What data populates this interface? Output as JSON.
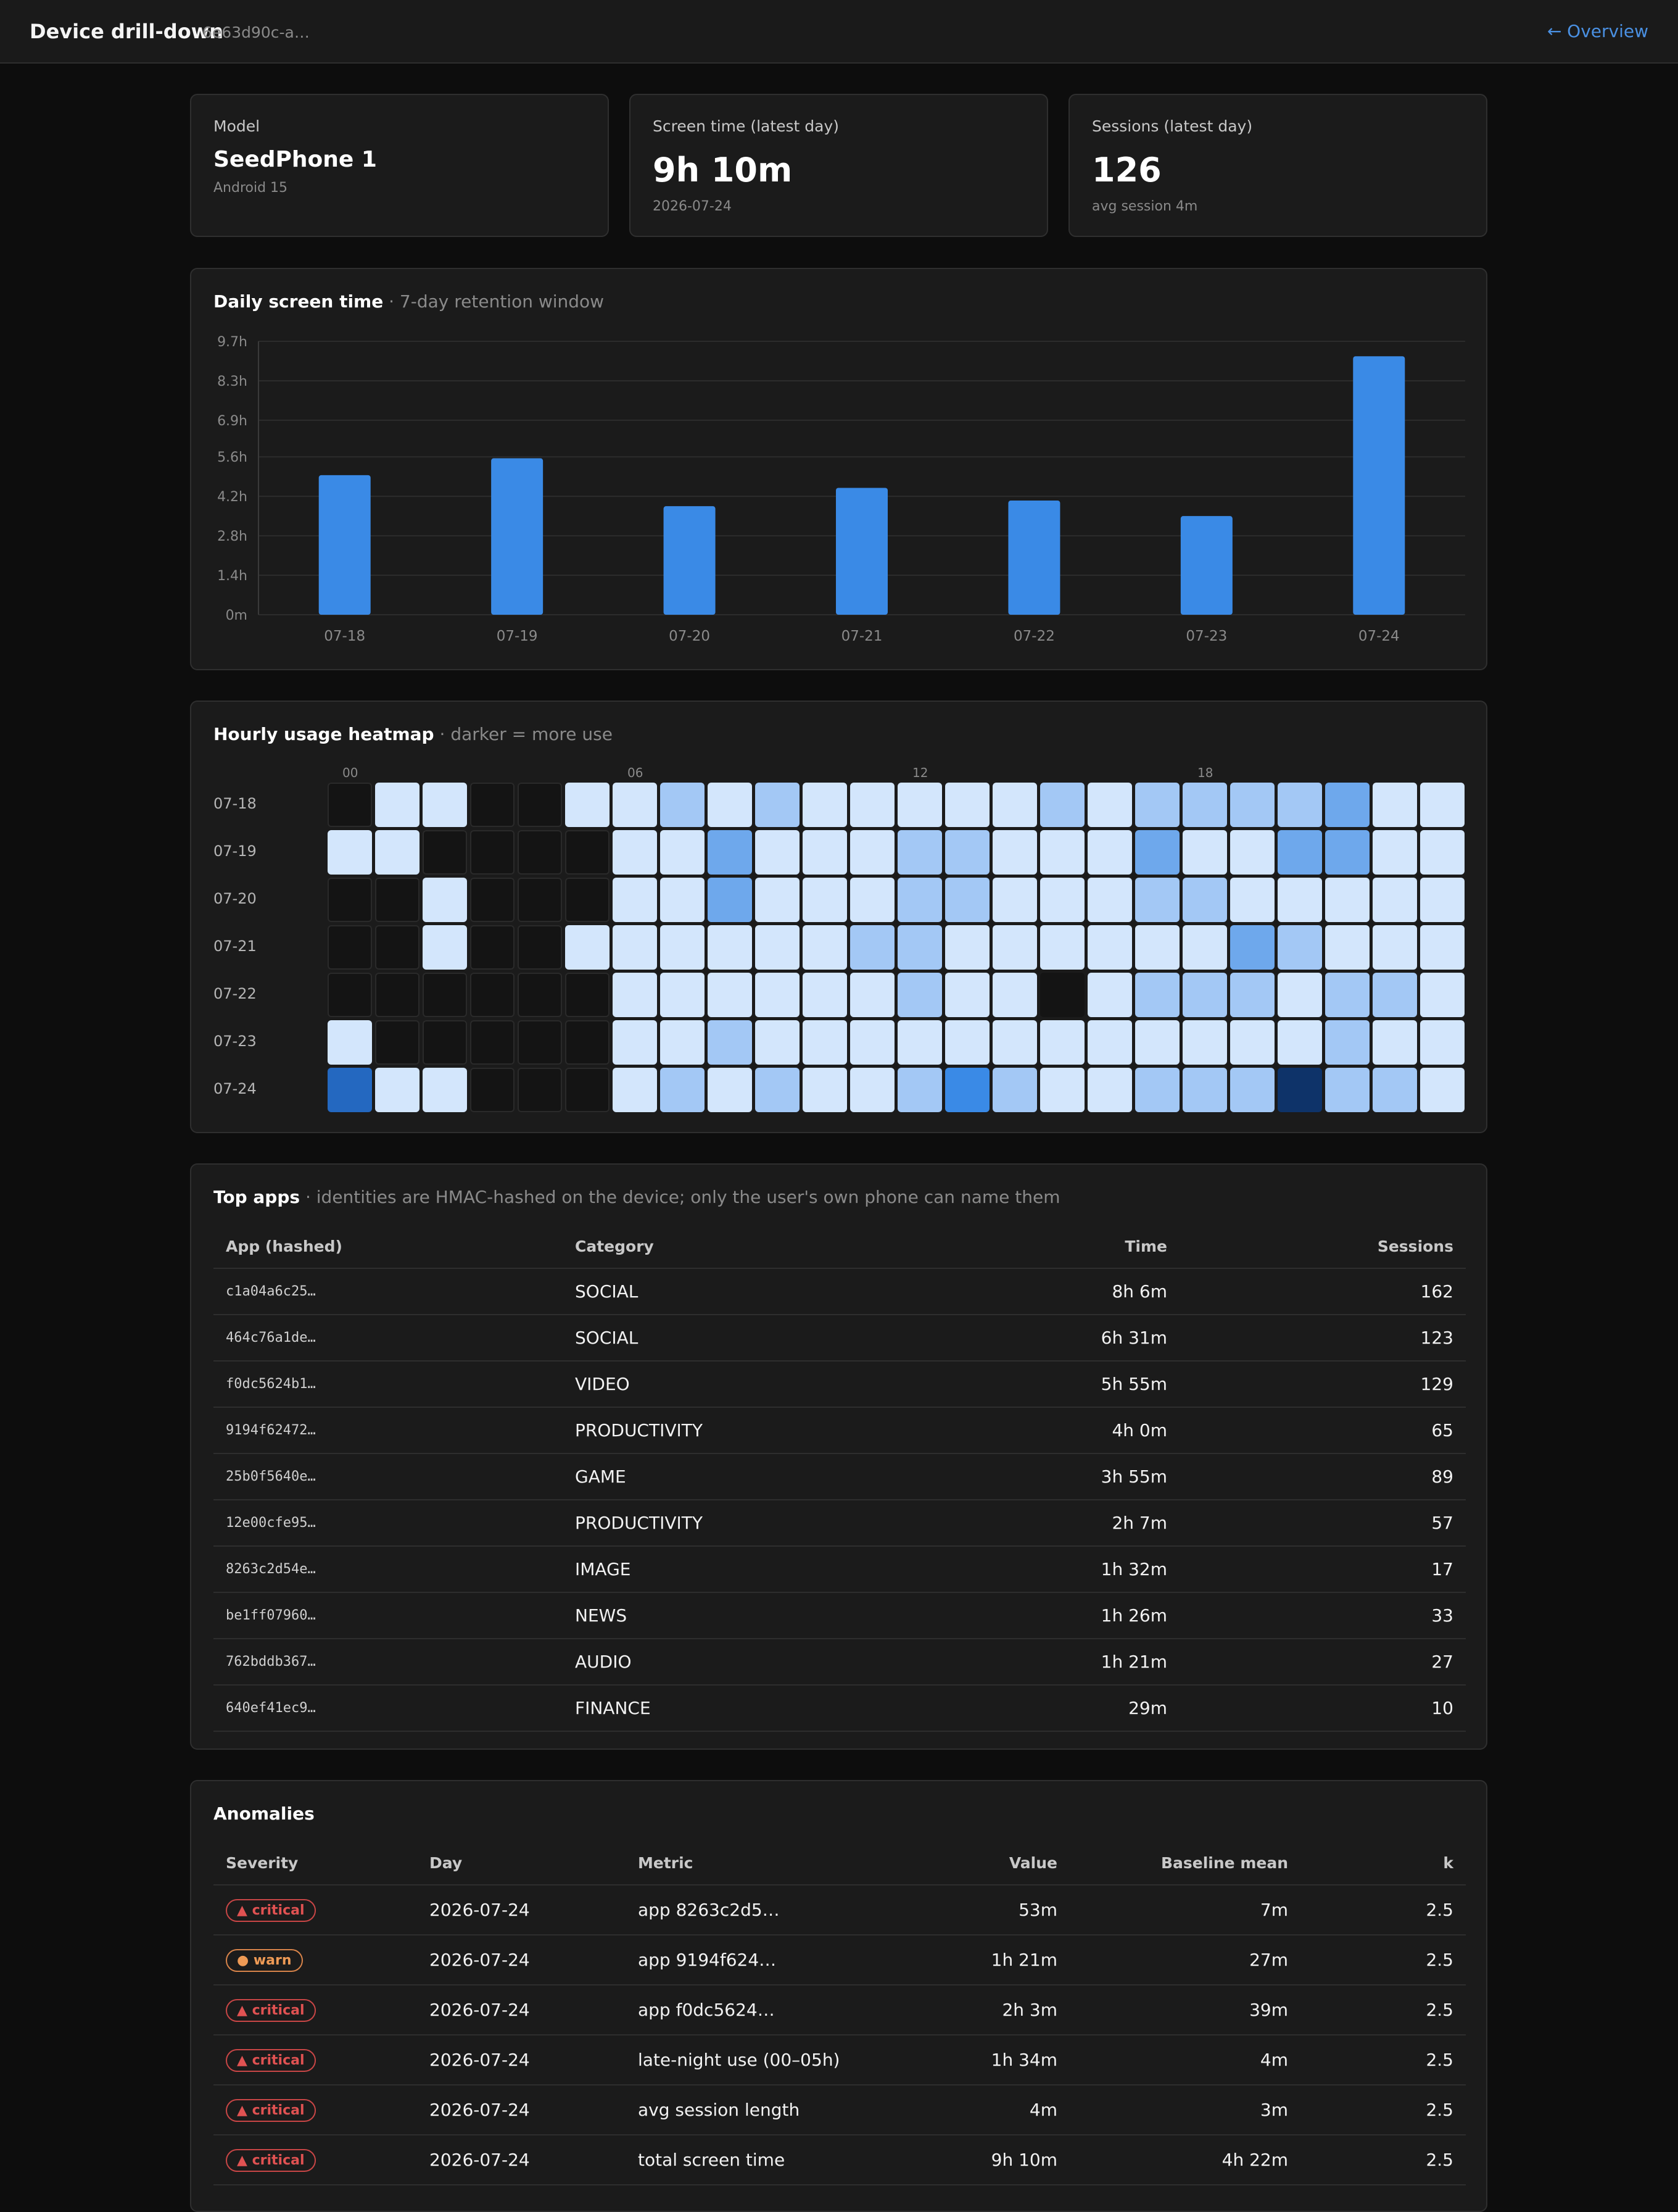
{
  "header": {
    "title": "Device drill-down",
    "device_id": "6e63d90c-a…",
    "back_link": "← Overview"
  },
  "stats": {
    "model": {
      "label": "Model",
      "value": "SeedPhone 1",
      "sub": "Android 15"
    },
    "screen_time": {
      "label": "Screen time (latest day)",
      "value": "9h 10m",
      "sub": "2026-07-24"
    },
    "sessions": {
      "label": "Sessions (latest day)",
      "value": "126",
      "sub": "avg session 4m"
    }
  },
  "daily": {
    "title": "Daily screen time",
    "separator": " · ",
    "subtitle": "7-day retention window"
  },
  "chart_data": {
    "type": "bar",
    "categories": [
      "07-18",
      "07-19",
      "07-20",
      "07-21",
      "07-22",
      "07-23",
      "07-24"
    ],
    "values": [
      4.95,
      5.55,
      3.85,
      4.5,
      4.05,
      3.5,
      9.17
    ],
    "ylim": [
      0,
      9.7
    ],
    "ytick_values": [
      0,
      1.4,
      2.8,
      4.2,
      5.6,
      6.9,
      8.3,
      9.7
    ],
    "ytick_labels": [
      "0m",
      "1.4h",
      "2.8h",
      "4.2h",
      "5.6h",
      "6.9h",
      "8.3h",
      "9.7h"
    ],
    "grid": true,
    "bar_color": "#3a8ae6",
    "xlabel": "",
    "ylabel": ""
  },
  "heatmap": {
    "title": "Hourly usage heatmap",
    "separator": " · ",
    "subtitle": "darker = more use",
    "hour_labels": [
      "00",
      "06",
      "12",
      "18"
    ],
    "hour_label_positions": [
      0,
      6,
      12,
      18
    ],
    "days": [
      "07-18",
      "07-19",
      "07-20",
      "07-21",
      "07-22",
      "07-23",
      "07-24"
    ],
    "levels": [
      [
        0,
        1,
        1,
        0,
        0,
        1,
        1,
        2,
        1,
        2,
        1,
        1,
        1,
        1,
        1,
        2,
        1,
        2,
        2,
        2,
        2,
        3,
        1,
        1
      ],
      [
        1,
        1,
        0,
        0,
        0,
        0,
        1,
        1,
        3,
        1,
        1,
        1,
        2,
        2,
        1,
        1,
        1,
        3,
        1,
        1,
        3,
        3,
        1,
        1
      ],
      [
        0,
        0,
        1,
        0,
        0,
        0,
        1,
        1,
        3,
        1,
        1,
        1,
        2,
        2,
        1,
        1,
        1,
        2,
        2,
        1,
        1,
        1,
        1,
        1
      ],
      [
        0,
        0,
        1,
        0,
        0,
        1,
        1,
        1,
        1,
        1,
        1,
        2,
        2,
        1,
        1,
        1,
        1,
        1,
        1,
        3,
        2,
        1,
        1,
        1
      ],
      [
        0,
        0,
        0,
        0,
        0,
        0,
        1,
        1,
        1,
        1,
        1,
        1,
        2,
        1,
        1,
        -1,
        1,
        2,
        2,
        2,
        1,
        2,
        2,
        1
      ],
      [
        1,
        0,
        0,
        0,
        0,
        0,
        1,
        1,
        2,
        1,
        1,
        1,
        1,
        1,
        1,
        1,
        1,
        1,
        1,
        1,
        1,
        2,
        1,
        1
      ],
      [
        5,
        1,
        1,
        0,
        0,
        0,
        1,
        2,
        1,
        2,
        1,
        1,
        2,
        4,
        2,
        1,
        1,
        2,
        2,
        2,
        6,
        2,
        2,
        1
      ]
    ],
    "level_colors": {
      "-1": "#141414",
      "1": "#d3e6fc",
      "2": "#a3c8f5",
      "3": "#6ea8ec",
      "4": "#3a8ae6",
      "5": "#2468c0",
      "6": "#0e3369"
    }
  },
  "top_apps": {
    "title": "Top apps",
    "separator": " · ",
    "subtitle": "identities are HMAC-hashed on the device; only the user's own phone can name them",
    "columns": [
      "App (hashed)",
      "Category",
      "Time",
      "Sessions"
    ],
    "rows": [
      [
        "c1a04a6c25…",
        "SOCIAL",
        "8h 6m",
        "162"
      ],
      [
        "464c76a1de…",
        "SOCIAL",
        "6h 31m",
        "123"
      ],
      [
        "f0dc5624b1…",
        "VIDEO",
        "5h 55m",
        "129"
      ],
      [
        "9194f62472…",
        "PRODUCTIVITY",
        "4h 0m",
        "65"
      ],
      [
        "25b0f5640e…",
        "GAME",
        "3h 55m",
        "89"
      ],
      [
        "12e00cfe95…",
        "PRODUCTIVITY",
        "2h 7m",
        "57"
      ],
      [
        "8263c2d54e…",
        "IMAGE",
        "1h 32m",
        "17"
      ],
      [
        "be1ff07960…",
        "NEWS",
        "1h 26m",
        "33"
      ],
      [
        "762bddb367…",
        "AUDIO",
        "1h 21m",
        "27"
      ],
      [
        "640ef41ec9…",
        "FINANCE",
        "29m",
        "10"
      ]
    ]
  },
  "anomalies": {
    "title": "Anomalies",
    "columns": [
      "Severity",
      "Day",
      "Metric",
      "Value",
      "Baseline mean",
      "k"
    ],
    "rows": [
      {
        "severity": "critical",
        "badge": "▲ critical",
        "day": "2026-07-24",
        "metric": "app 8263c2d5…",
        "value": "53m",
        "baseline": "7m",
        "k": "2.5"
      },
      {
        "severity": "warn",
        "badge": "● warn",
        "day": "2026-07-24",
        "metric": "app 9194f624…",
        "value": "1h 21m",
        "baseline": "27m",
        "k": "2.5"
      },
      {
        "severity": "critical",
        "badge": "▲ critical",
        "day": "2026-07-24",
        "metric": "app f0dc5624…",
        "value": "2h 3m",
        "baseline": "39m",
        "k": "2.5"
      },
      {
        "severity": "critical",
        "badge": "▲ critical",
        "day": "2026-07-24",
        "metric": "late-night use (00–05h)",
        "value": "1h 34m",
        "baseline": "4m",
        "k": "2.5"
      },
      {
        "severity": "critical",
        "badge": "▲ critical",
        "day": "2026-07-24",
        "metric": "avg session length",
        "value": "4m",
        "baseline": "3m",
        "k": "2.5"
      },
      {
        "severity": "critical",
        "badge": "▲ critical",
        "day": "2026-07-24",
        "metric": "total screen time",
        "value": "9h 10m",
        "baseline": "4h 22m",
        "k": "2.5"
      }
    ]
  }
}
